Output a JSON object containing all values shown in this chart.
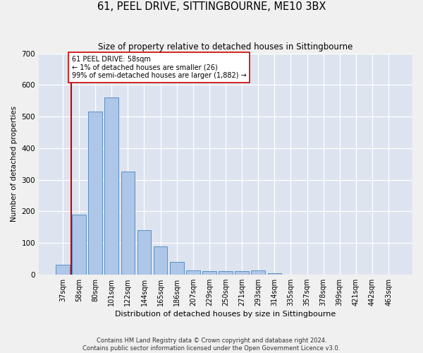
{
  "title": "61, PEEL DRIVE, SITTINGBOURNE, ME10 3BX",
  "subtitle": "Size of property relative to detached houses in Sittingbourne",
  "xlabel": "Distribution of detached houses by size in Sittingbourne",
  "ylabel": "Number of detached properties",
  "footer_line1": "Contains HM Land Registry data © Crown copyright and database right 2024.",
  "footer_line2": "Contains public sector information licensed under the Open Government Licence v3.0.",
  "annotation_line1": "61 PEEL DRIVE: 58sqm",
  "annotation_line2": "← 1% of detached houses are smaller (26)",
  "annotation_line3": "99% of semi-detached houses are larger (1,882) →",
  "bar_color": "#aec6e8",
  "bar_edge_color": "#5a8fc2",
  "highlight_color": "#cc0000",
  "background_color": "#dde4f0",
  "grid_color": "#ffffff",
  "fig_facecolor": "#f0f0f0",
  "categories": [
    "37sqm",
    "58sqm",
    "80sqm",
    "101sqm",
    "122sqm",
    "144sqm",
    "165sqm",
    "186sqm",
    "207sqm",
    "229sqm",
    "250sqm",
    "271sqm",
    "293sqm",
    "314sqm",
    "335sqm",
    "357sqm",
    "378sqm",
    "399sqm",
    "421sqm",
    "442sqm",
    "463sqm"
  ],
  "values": [
    30,
    190,
    515,
    560,
    325,
    140,
    88,
    40,
    13,
    10,
    10,
    10,
    13,
    5,
    0,
    0,
    0,
    0,
    0,
    0,
    0
  ],
  "highlight_bar_index": 1,
  "ylim": [
    0,
    700
  ],
  "yticks": [
    0,
    100,
    200,
    300,
    400,
    500,
    600,
    700
  ]
}
